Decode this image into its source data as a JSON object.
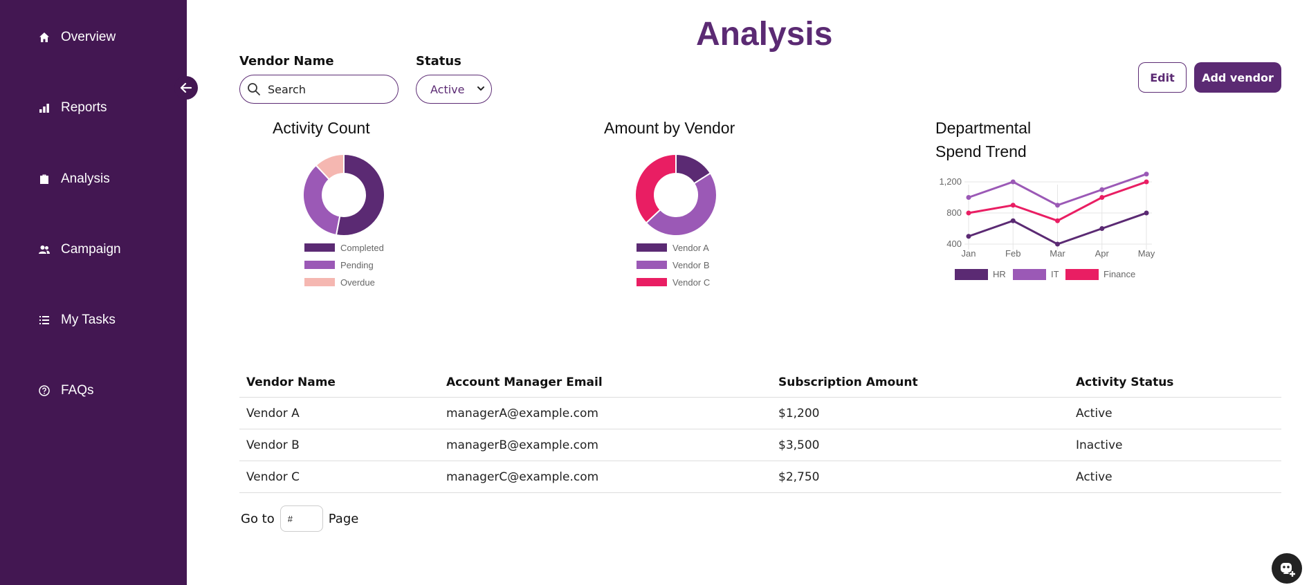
{
  "sidebar": {
    "items": [
      {
        "label": "Overview",
        "icon": "home-icon"
      },
      {
        "label": "Reports",
        "icon": "bar-chart-icon"
      },
      {
        "label": "Analysis",
        "icon": "briefcase-icon"
      },
      {
        "label": "Campaign",
        "icon": "users-icon"
      },
      {
        "label": "My Tasks",
        "icon": "list-icon"
      },
      {
        "label": "FAQs",
        "icon": "help-circle-icon"
      }
    ]
  },
  "header": {
    "title": "Analysis"
  },
  "filters": {
    "vendor_label": "Vendor Name",
    "search_placeholder": "Search",
    "status_label": "Status",
    "status_value": "Active"
  },
  "actions": {
    "edit_label": "Edit",
    "add_label": "Add vendor"
  },
  "colors": {
    "sidebar_bg": "#431752",
    "accent": "#5b2a73",
    "dark_purple": "#5b2a73",
    "light_purple": "#9b59b6",
    "pink": "#f5b7b1",
    "magenta": "#e91e63"
  },
  "chart_data": [
    {
      "type": "pie",
      "title": "Activity Count",
      "categories": [
        "Completed",
        "Pending",
        "Overdue"
      ],
      "values": [
        53,
        35,
        12
      ],
      "colors": [
        "#5b2a73",
        "#9b59b6",
        "#f5b7b1"
      ]
    },
    {
      "type": "pie",
      "title": "Amount by Vendor",
      "categories": [
        "Vendor A",
        "Vendor B",
        "Vendor C"
      ],
      "values": [
        16,
        47,
        37
      ],
      "colors": [
        "#5b2a73",
        "#9b59b6",
        "#e91e63"
      ]
    },
    {
      "type": "line",
      "title_line1": "Departmental",
      "title_line2": "Spend Trend",
      "categories": [
        "Jan",
        "Feb",
        "Mar",
        "Apr",
        "May"
      ],
      "yticks": [
        "400",
        "800",
        "1,200"
      ],
      "ylim": [
        400,
        1200
      ],
      "series": [
        {
          "name": "HR",
          "values": [
            500,
            700,
            400,
            600,
            800
          ],
          "color": "#5b2a73"
        },
        {
          "name": "IT",
          "values": [
            1000,
            1200,
            900,
            1100,
            1300
          ],
          "color": "#9b59b6"
        },
        {
          "name": "Finance",
          "values": [
            800,
            900,
            700,
            1000,
            1200
          ],
          "color": "#e91e63"
        }
      ]
    }
  ],
  "table": {
    "headers": [
      "Vendor Name",
      "Account Manager Email",
      "Subscription Amount",
      "Activity Status"
    ],
    "rows": [
      [
        "Vendor A",
        "managerA@example.com",
        "$1,200",
        "Active"
      ],
      [
        "Vendor B",
        "managerB@example.com",
        "$3,500",
        "Inactive"
      ],
      [
        "Vendor C",
        "managerC@example.com",
        "$2,750",
        "Active"
      ]
    ]
  },
  "pagination": {
    "goto_label": "Go to",
    "placeholder": "#",
    "page_label": "Page"
  }
}
